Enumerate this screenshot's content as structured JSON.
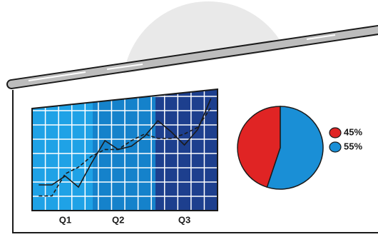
{
  "chart_data": [
    {
      "type": "line",
      "categories": [
        null,
        null,
        "Q1",
        null,
        null,
        null,
        "Q2",
        null,
        null,
        null,
        null,
        "Q3",
        null,
        null
      ],
      "series": [
        {
          "color": "#1a1a1a",
          "style": "solid",
          "values": [
            20,
            20,
            28,
            18,
            40,
            60,
            52,
            55,
            64,
            78,
            68,
            56,
            70,
            98
          ]
        },
        {
          "color": "#1a1a1a",
          "style": "dashed",
          "values": [
            10,
            10,
            30,
            36,
            46,
            52,
            52,
            60,
            66,
            62,
            62,
            66,
            72,
            90
          ]
        }
      ],
      "ylim": [
        0,
        100
      ],
      "grid": true
    },
    {
      "type": "pie",
      "values": [
        45,
        55
      ],
      "value_labels": [
        "45%",
        "55%"
      ],
      "colors": [
        "#e02424",
        "#1a8fd6"
      ]
    }
  ]
}
